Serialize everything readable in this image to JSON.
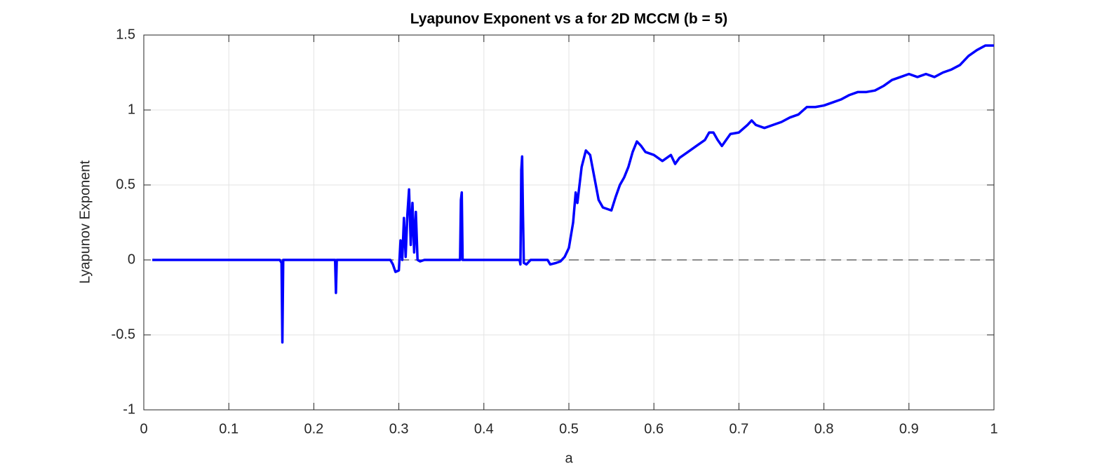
{
  "chart_data": {
    "type": "line",
    "title": "Lyapunov Exponent vs a for 2D MCCM (b = 5)",
    "x_label": "a",
    "y_label": "Lyapunov Exponent",
    "xlim": [
      0,
      1
    ],
    "ylim": [
      -1,
      1.5
    ],
    "xticks": [
      0,
      0.1,
      0.2,
      0.3,
      0.4,
      0.5,
      0.6,
      0.7,
      0.8,
      0.9,
      1
    ],
    "yticks": [
      -1,
      -0.5,
      0,
      0.5,
      1,
      1.5
    ],
    "grid": true,
    "reference_line": {
      "y": 0,
      "color": "#666666"
    },
    "series": [
      {
        "color": "#0000ff",
        "x": [
          0.01,
          0.16,
          0.162,
          0.163,
          0.164,
          0.225,
          0.226,
          0.227,
          0.29,
          0.293,
          0.296,
          0.3,
          0.302,
          0.304,
          0.306,
          0.308,
          0.31,
          0.312,
          0.314,
          0.316,
          0.318,
          0.32,
          0.322,
          0.325,
          0.33,
          0.372,
          0.373,
          0.374,
          0.375,
          0.442,
          0.443,
          0.444,
          0.445,
          0.446,
          0.447,
          0.45,
          0.455,
          0.475,
          0.478,
          0.485,
          0.49,
          0.495,
          0.5,
          0.505,
          0.508,
          0.51,
          0.515,
          0.52,
          0.525,
          0.53,
          0.535,
          0.54,
          0.545,
          0.55,
          0.555,
          0.56,
          0.565,
          0.57,
          0.575,
          0.58,
          0.585,
          0.59,
          0.6,
          0.61,
          0.62,
          0.625,
          0.63,
          0.64,
          0.65,
          0.66,
          0.665,
          0.67,
          0.675,
          0.68,
          0.685,
          0.69,
          0.7,
          0.71,
          0.715,
          0.72,
          0.73,
          0.74,
          0.75,
          0.76,
          0.77,
          0.78,
          0.79,
          0.8,
          0.81,
          0.82,
          0.83,
          0.84,
          0.85,
          0.86,
          0.87,
          0.88,
          0.89,
          0.9,
          0.91,
          0.92,
          0.93,
          0.94,
          0.95,
          0.96,
          0.97,
          0.98,
          0.99,
          1
        ],
        "values": [
          0,
          0,
          -0.02,
          -0.55,
          0,
          0,
          -0.22,
          0,
          0,
          -0.03,
          -0.08,
          -0.07,
          0.13,
          0,
          0.28,
          0.02,
          0.3,
          0.47,
          0.1,
          0.38,
          0.05,
          0.32,
          0,
          -0.01,
          0,
          0,
          0.4,
          0.45,
          0,
          0,
          -0.03,
          0.6,
          0.69,
          0.3,
          -0.02,
          -0.03,
          0,
          0,
          -0.03,
          -0.02,
          -0.01,
          0.02,
          0.08,
          0.25,
          0.45,
          0.38,
          0.62,
          0.73,
          0.7,
          0.55,
          0.4,
          0.35,
          0.34,
          0.33,
          0.42,
          0.5,
          0.55,
          0.62,
          0.72,
          0.79,
          0.76,
          0.72,
          0.7,
          0.66,
          0.7,
          0.64,
          0.68,
          0.72,
          0.76,
          0.8,
          0.85,
          0.85,
          0.8,
          0.76,
          0.8,
          0.84,
          0.85,
          0.9,
          0.93,
          0.9,
          0.88,
          0.9,
          0.92,
          0.95,
          0.97,
          1.02,
          1.02,
          1.03,
          1.05,
          1.07,
          1.1,
          1.12,
          1.12,
          1.13,
          1.16,
          1.2,
          1.22,
          1.24,
          1.22,
          1.24,
          1.22,
          1.25,
          1.27,
          1.3,
          1.36,
          1.4,
          1.43,
          1.43
        ]
      }
    ]
  }
}
